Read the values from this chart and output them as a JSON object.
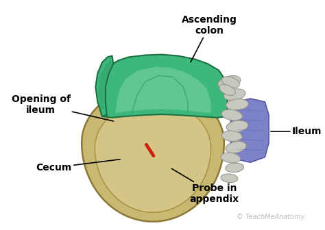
{
  "bg_color": "#ffffff",
  "cecum_color": "#c8b870",
  "cecum_wall_color": "#b8a855",
  "cecum_inner_color": "#d4c485",
  "ascending_colon_color": "#3db87a",
  "ascending_colon_dark_color": "#2a9060",
  "ascending_colon_light_color": "#7dd4a8",
  "ileum_color": "#7b82c8",
  "ileum_edge_color": "#5558a0",
  "loops_color": "#c8c8c0",
  "loops_edge_color": "#909088",
  "probe_color": "#cc2211",
  "labels": {
    "ascending_colon": "Ascending\ncolon",
    "opening_of_ileum": "Opening of\nileum",
    "ileum": "Ileum",
    "cecum": "Cecum",
    "probe_in_appendix": "Probe in\nappendix",
    "watermark": "TeachMeAnatomy"
  },
  "label_fontsize": 10,
  "label_fontweight": "bold",
  "watermark_fontsize": 7,
  "figsize": [
    4.74,
    3.36
  ],
  "dpi": 100
}
